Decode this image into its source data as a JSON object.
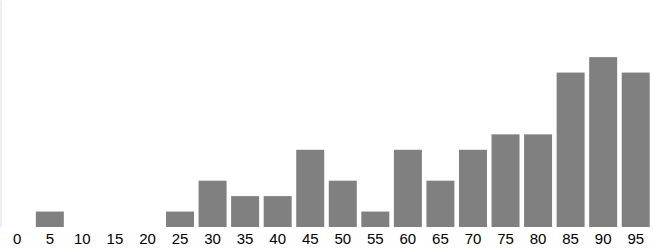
{
  "chart_data": {
    "type": "bar",
    "categories": [
      "0",
      "5",
      "10",
      "15",
      "20",
      "25",
      "30",
      "35",
      "40",
      "45",
      "50",
      "55",
      "60",
      "65",
      "70",
      "75",
      "80",
      "85",
      "90",
      "95"
    ],
    "values": [
      0,
      1,
      0,
      0,
      0,
      1,
      3,
      2,
      2,
      5,
      3,
      1,
      5,
      3,
      5,
      6,
      6,
      10,
      11,
      10
    ],
    "color": "#808080",
    "ylim": [
      0,
      14.7
    ],
    "tick_labels": "x"
  }
}
